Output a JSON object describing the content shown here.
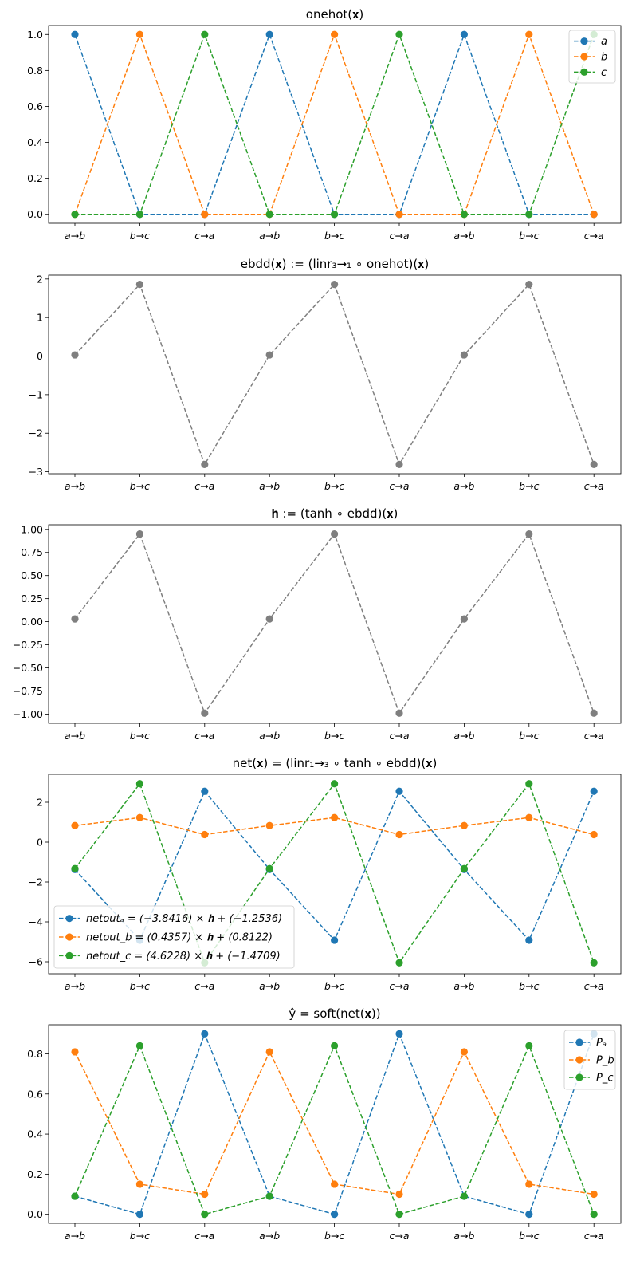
{
  "chart_data": [
    {
      "type": "line",
      "title": "onehot(𝐱)",
      "categories": [
        "a→b",
        "b→c",
        "c→a",
        "a→b",
        "b→c",
        "c→a",
        "a→b",
        "b→c",
        "c→a"
      ],
      "ylim": [
        -0.05,
        1.05
      ],
      "yticks": [
        "0.0",
        "0.2",
        "0.4",
        "0.6",
        "0.8",
        "1.0"
      ],
      "ytick_values": [
        0,
        0.2,
        0.4,
        0.6,
        0.8,
        1.0
      ],
      "grid": false,
      "legend": "top-right",
      "series": [
        {
          "name": "a",
          "color": "#1f77b4",
          "values": [
            1,
            0,
            0,
            1,
            0,
            0,
            1,
            0,
            0
          ]
        },
        {
          "name": "b",
          "color": "#ff7f0e",
          "values": [
            0,
            1,
            0,
            0,
            1,
            0,
            0,
            1,
            0
          ]
        },
        {
          "name": "c",
          "color": "#2ca02c",
          "values": [
            0,
            0,
            1,
            0,
            0,
            1,
            0,
            0,
            1
          ]
        }
      ]
    },
    {
      "type": "line",
      "title": "ebdd(𝐱) := (linr₃→₁ ∘ onehot)(𝐱)",
      "categories": [
        "a→b",
        "b→c",
        "c→a",
        "a→b",
        "b→c",
        "c→a",
        "a→b",
        "b→c",
        "c→a"
      ],
      "ylim": [
        -3.05,
        2.1
      ],
      "yticks": [
        "−3",
        "−2",
        "−1",
        "0",
        "1",
        "2"
      ],
      "ytick_values": [
        -3,
        -2,
        -1,
        0,
        1,
        2
      ],
      "grid": false,
      "legend": "none",
      "series": [
        {
          "color": "#7f7f7f",
          "values": [
            0.03,
            1.86,
            -2.81,
            0.03,
            1.86,
            -2.81,
            0.03,
            1.86,
            -2.81
          ]
        }
      ]
    },
    {
      "type": "line",
      "title": "𝐡 := (tanh ∘ ebdd)(𝐱)",
      "categories": [
        "a→b",
        "b→c",
        "c→a",
        "a→b",
        "b→c",
        "c→a",
        "a→b",
        "b→c",
        "c→a"
      ],
      "ylim": [
        -1.1,
        1.05
      ],
      "yticks": [
        "−1.00",
        "−0.75",
        "−0.50",
        "−0.25",
        "0.00",
        "0.25",
        "0.50",
        "0.75",
        "1.00"
      ],
      "ytick_values": [
        -1.0,
        -0.75,
        -0.5,
        -0.25,
        0,
        0.25,
        0.5,
        0.75,
        1.0
      ],
      "grid": false,
      "legend": "none",
      "series": [
        {
          "color": "#7f7f7f",
          "values": [
            0.03,
            0.95,
            -0.99,
            0.03,
            0.95,
            -0.99,
            0.03,
            0.95,
            -0.99
          ]
        }
      ]
    },
    {
      "type": "line",
      "title": "net(𝐱) = (linr₁→₃ ∘ tanh ∘ ebdd)(𝐱)",
      "categories": [
        "a→b",
        "b→c",
        "c→a",
        "a→b",
        "b→c",
        "c→a",
        "a→b",
        "b→c",
        "c→a"
      ],
      "ylim": [
        -6.6,
        3.4
      ],
      "yticks": [
        "−6",
        "−4",
        "−2",
        "0",
        "2"
      ],
      "ytick_values": [
        -6,
        -4,
        -2,
        0,
        2
      ],
      "grid": false,
      "legend": "lower-left",
      "series": [
        {
          "name": "netoutₐ = (−3.8416) × 𝐡 + (−1.2536)",
          "color": "#1f77b4",
          "values": [
            -1.37,
            -4.92,
            2.55,
            -1.37,
            -4.92,
            2.55,
            -1.37,
            -4.92,
            2.55
          ]
        },
        {
          "name": "netout_b = (0.4357) × 𝐡 + (0.8122)",
          "color": "#ff7f0e",
          "values": [
            0.83,
            1.23,
            0.38,
            0.83,
            1.23,
            0.38,
            0.83,
            1.23,
            0.38
          ]
        },
        {
          "name": "netout_c = (4.6228) × 𝐡 + (−1.4709)",
          "color": "#2ca02c",
          "values": [
            -1.33,
            2.93,
            -6.05,
            -1.33,
            2.93,
            -6.05,
            -1.33,
            2.93,
            -6.05
          ]
        }
      ]
    },
    {
      "type": "line",
      "title": "ŷ = soft(net(𝐱))",
      "categories": [
        "a→b",
        "b→c",
        "c→a",
        "a→b",
        "b→c",
        "c→a",
        "a→b",
        "b→c",
        "c→a"
      ],
      "ylim": [
        -0.045,
        0.945
      ],
      "yticks": [
        "0.0",
        "0.2",
        "0.4",
        "0.6",
        "0.8"
      ],
      "ytick_values": [
        0,
        0.2,
        0.4,
        0.6,
        0.8
      ],
      "grid": false,
      "legend": "top-right",
      "series": [
        {
          "name": "Pₐ",
          "color": "#1f77b4",
          "values": [
            0.09,
            0.0,
            0.9,
            0.09,
            0.0,
            0.9,
            0.09,
            0.0,
            0.9
          ]
        },
        {
          "name": "P_b",
          "color": "#ff7f0e",
          "values": [
            0.81,
            0.15,
            0.1,
            0.81,
            0.15,
            0.1,
            0.81,
            0.15,
            0.1
          ]
        },
        {
          "name": "P_c",
          "color": "#2ca02c",
          "values": [
            0.09,
            0.84,
            0.0,
            0.09,
            0.84,
            0.0,
            0.09,
            0.84,
            0.0
          ]
        }
      ]
    }
  ]
}
